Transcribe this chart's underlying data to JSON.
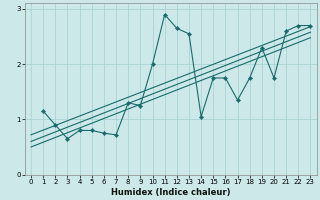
{
  "xlabel": "Humidex (Indice chaleur)",
  "bg_color": "#cce8e8",
  "grid_color": "#aad4d4",
  "line_color": "#1a6b6b",
  "xlim": [
    -0.5,
    23.5
  ],
  "ylim": [
    0,
    3.1
  ],
  "xticks": [
    0,
    1,
    2,
    3,
    4,
    5,
    6,
    7,
    8,
    9,
    10,
    11,
    12,
    13,
    14,
    15,
    16,
    17,
    18,
    19,
    20,
    21,
    22,
    23
  ],
  "yticks": [
    0,
    1,
    2,
    3
  ],
  "scatter_x": [
    1,
    2,
    3,
    4,
    5,
    6,
    7,
    8,
    9,
    10,
    11,
    12,
    13,
    14,
    15,
    16,
    17,
    18,
    19,
    20,
    21,
    22,
    23
  ],
  "scatter_y": [
    1.15,
    0.9,
    0.65,
    0.8,
    0.8,
    0.75,
    0.72,
    1.3,
    1.25,
    2.0,
    2.9,
    2.65,
    2.55,
    1.05,
    1.75,
    1.75,
    1.35,
    1.75,
    2.3,
    1.75,
    2.6,
    2.7,
    2.7
  ],
  "line1_x": [
    0,
    23
  ],
  "line1_y": [
    0.72,
    2.68
  ],
  "line2_x": [
    0,
    23
  ],
  "line2_y": [
    0.6,
    2.58
  ],
  "line3_x": [
    0,
    23
  ],
  "line3_y": [
    0.5,
    2.48
  ],
  "xlabel_fontsize": 6.0,
  "tick_fontsize": 5.0
}
